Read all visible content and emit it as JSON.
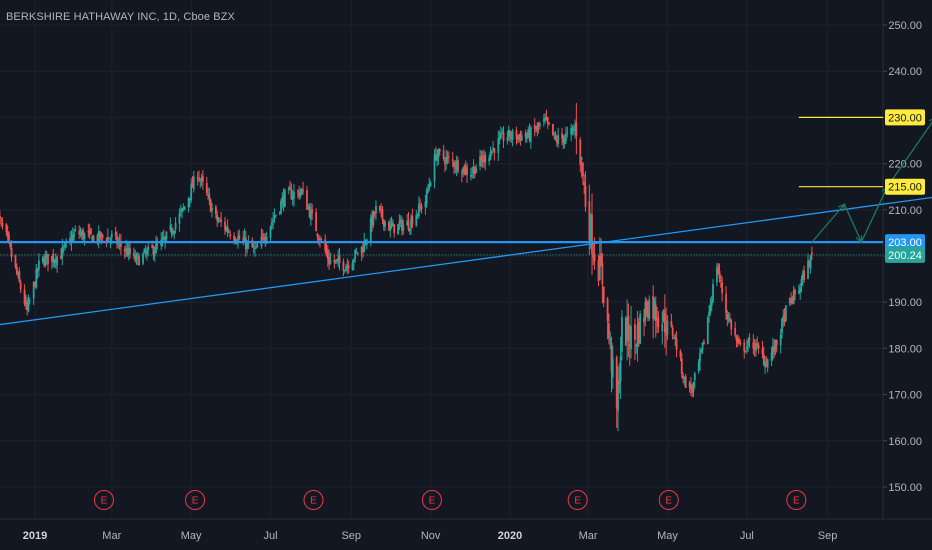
{
  "header": {
    "title": "BERKSHIRE HATHAWAY INC, 1D, Cboe BZX"
  },
  "colors": {
    "background": "#131722",
    "grid": "#1e222d",
    "up_candle": "#26a69a",
    "down_candle": "#ef5350",
    "support_line": "#2196f3",
    "trendline": "#2196f3",
    "target_line": "#ffeb3b",
    "projection_arrow": "#1b7a5c",
    "price_tag_green": "#26a69a",
    "earnings_marker": "#f23645"
  },
  "chart_data": {
    "type": "candlestick",
    "title": "BERKSHIRE HATHAWAY INC, 1D, Cboe BZX",
    "ylim": [
      143,
      258
    ],
    "y_ticks": [
      "150.00",
      "160.00",
      "170.00",
      "180.00",
      "190.00",
      "200.00",
      "210.00",
      "220.00",
      "230.00",
      "240.00",
      "250.00"
    ],
    "x_labels": [
      {
        "label": "2019",
        "date": "2019-01-01",
        "bold": true
      },
      {
        "label": "Mar",
        "date": "2019-03-01",
        "bold": false
      },
      {
        "label": "May",
        "date": "2019-05-01",
        "bold": false
      },
      {
        "label": "Jul",
        "date": "2019-07-01",
        "bold": false
      },
      {
        "label": "Sep",
        "date": "2019-09-01",
        "bold": false
      },
      {
        "label": "Nov",
        "date": "2019-11-01",
        "bold": false
      },
      {
        "label": "2020",
        "date": "2020-01-01",
        "bold": true
      },
      {
        "label": "Mar",
        "date": "2020-03-01",
        "bold": false
      },
      {
        "label": "May",
        "date": "2020-05-01",
        "bold": false
      },
      {
        "label": "Jul",
        "date": "2020-07-01",
        "bold": false
      },
      {
        "label": "Sep",
        "date": "2020-09-01",
        "bold": false
      }
    ],
    "price_path": [
      [
        "2018-12-01",
        210
      ],
      [
        "2018-12-10",
        204
      ],
      [
        "2018-12-18",
        196
      ],
      [
        "2018-12-26",
        188
      ],
      [
        "2019-01-05",
        199
      ],
      [
        "2019-01-20",
        200
      ],
      [
        "2019-02-01",
        205
      ],
      [
        "2019-02-15",
        204
      ],
      [
        "2019-03-01",
        204
      ],
      [
        "2019-03-20",
        199
      ],
      [
        "2019-04-10",
        203
      ],
      [
        "2019-04-25",
        210
      ],
      [
        "2019-05-06",
        218
      ],
      [
        "2019-05-20",
        208
      ],
      [
        "2019-06-05",
        204
      ],
      [
        "2019-06-20",
        201
      ],
      [
        "2019-07-01",
        207
      ],
      [
        "2019-07-12",
        213
      ],
      [
        "2019-07-25",
        214
      ],
      [
        "2019-08-05",
        206
      ],
      [
        "2019-08-15",
        199
      ],
      [
        "2019-08-28",
        198
      ],
      [
        "2019-09-10",
        202
      ],
      [
        "2019-09-20",
        210
      ],
      [
        "2019-10-01",
        206
      ],
      [
        "2019-10-15",
        207
      ],
      [
        "2019-10-28",
        212
      ],
      [
        "2019-11-05",
        222
      ],
      [
        "2019-11-20",
        220
      ],
      [
        "2019-12-01",
        218
      ],
      [
        "2019-12-15",
        222
      ],
      [
        "2019-12-28",
        226
      ],
      [
        "2020-01-15",
        226
      ],
      [
        "2020-01-28",
        229
      ],
      [
        "2020-02-05",
        225
      ],
      [
        "2020-02-15",
        226
      ],
      [
        "2020-02-21",
        228
      ],
      [
        "2020-02-25",
        220
      ],
      [
        "2020-02-28",
        212
      ],
      [
        "2020-03-05",
        202
      ],
      [
        "2020-03-12",
        195
      ],
      [
        "2020-03-18",
        180
      ],
      [
        "2020-03-23",
        166
      ],
      [
        "2020-03-27",
        184
      ],
      [
        "2020-04-06",
        182
      ],
      [
        "2020-04-16",
        190
      ],
      [
        "2020-04-26",
        187
      ],
      [
        "2020-05-06",
        183
      ],
      [
        "2020-05-14",
        173
      ],
      [
        "2020-05-20",
        171
      ],
      [
        "2020-05-28",
        180
      ],
      [
        "2020-06-08",
        198
      ],
      [
        "2020-06-15",
        188
      ],
      [
        "2020-06-25",
        180
      ],
      [
        "2020-07-06",
        181
      ],
      [
        "2020-07-16",
        177
      ],
      [
        "2020-07-24",
        181
      ],
      [
        "2020-08-01",
        189
      ],
      [
        "2020-08-10",
        193
      ],
      [
        "2020-08-14",
        196
      ],
      [
        "2020-08-20",
        200
      ]
    ],
    "price_range": {
      "start": "2018-12-01",
      "end": "2020-08-20"
    },
    "horizontal_lines": [
      {
        "name": "resistance-203",
        "value": 203.0,
        "from": "2018-12-01",
        "to": "2020-12-25",
        "style": "solid",
        "color_key": "support_line"
      },
      {
        "name": "last-price-200",
        "value": 200.24,
        "from": "2018-12-01",
        "to": "2020-12-25",
        "style": "dotted",
        "color_key": "price_tag_green"
      },
      {
        "name": "target-215",
        "value": 215.0,
        "from": "2020-08-10",
        "to": "2020-12-25",
        "style": "solid",
        "color_key": "target_line"
      },
      {
        "name": "target-230",
        "value": 230.0,
        "from": "2020-08-10",
        "to": "2020-12-25",
        "style": "solid",
        "color_key": "target_line"
      }
    ],
    "trendline": {
      "from": {
        "date": "2018-12-01",
        "value": 185.0
      },
      "to": {
        "date": "2020-12-25",
        "value": 214.0
      }
    },
    "projection_path": [
      {
        "date": "2020-08-20",
        "value": 203.0
      },
      {
        "date": "2020-09-14",
        "value": 211.2
      },
      {
        "date": "2020-09-27",
        "value": 203.0
      },
      {
        "date": "2020-10-17",
        "value": 215.0
      },
      {
        "date": "2020-11-23",
        "value": 230.0
      }
    ],
    "price_tags": [
      {
        "label": "230.00",
        "value": 230.0,
        "style": "yellow"
      },
      {
        "label": "215.00",
        "value": 215.0,
        "style": "yellow"
      },
      {
        "label": "203.00",
        "value": 203.0,
        "style": "blue"
      },
      {
        "label": "200.24",
        "value": 200.24,
        "style": "green"
      }
    ],
    "earnings_events": [
      {
        "label": "E",
        "date": "2019-02-23"
      },
      {
        "label": "E",
        "date": "2019-05-04"
      },
      {
        "label": "E",
        "date": "2019-08-03"
      },
      {
        "label": "E",
        "date": "2019-11-02"
      },
      {
        "label": "E",
        "date": "2020-02-22"
      },
      {
        "label": "E",
        "date": "2020-05-02"
      },
      {
        "label": "E",
        "date": "2020-08-08"
      }
    ]
  }
}
